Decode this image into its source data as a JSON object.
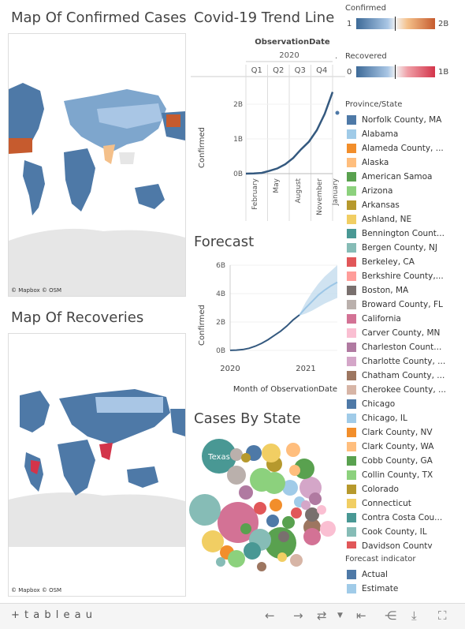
{
  "titles": {
    "map_confirmed": "Map Of Confirmed Cases",
    "trend": "Covid-19 Trend Line",
    "map_recoveries": "Map Of Recoveries",
    "forecast": "Forecast",
    "cases_by_state": "Cases By State"
  },
  "map_attribution": "© Mapbox  © OSM",
  "colors": {
    "line": "#34597f",
    "forecast_band": "#c4dcee",
    "forecast_estimate": "#9cc6e6",
    "map_blue_dark": "#4e79a7",
    "map_blue_light": "#a9c6e5",
    "map_orange": "#c65b2e",
    "map_red": "#d3344a",
    "land_gray": "#e6e6e6"
  },
  "trend": {
    "header": "ObservationDate",
    "year": "2020",
    "quarters": [
      "Q1",
      "Q2",
      "Q3",
      "Q4"
    ],
    "more_marker": ".",
    "ylabel": "Confirmed",
    "yticks": [
      "2B",
      "1B",
      "0B"
    ],
    "xticks": [
      "February",
      "May",
      "August",
      "November",
      "January"
    ]
  },
  "forecast_axis": {
    "ylabel": "Confirmed",
    "yticks": [
      "6B",
      "4B",
      "2B",
      "0B"
    ],
    "xticks": [
      "2020",
      "2021"
    ],
    "xlabel": "Month of ObservationDate"
  },
  "chart_data": [
    {
      "type": "line",
      "title": "Covid-19 Trend Line",
      "ylabel": "Confirmed",
      "ylim": [
        0,
        2.5
      ],
      "y_unit": "B",
      "x": [
        "2020-01",
        "2020-02",
        "2020-03",
        "2020-04",
        "2020-05",
        "2020-06",
        "2020-07",
        "2020-08",
        "2020-09",
        "2020-10",
        "2020-11",
        "2020-12",
        "2021-01"
      ],
      "values": [
        0.001,
        0.005,
        0.02,
        0.08,
        0.15,
        0.27,
        0.45,
        0.7,
        0.92,
        1.25,
        1.72,
        2.35,
        1.75
      ]
    },
    {
      "type": "line",
      "title": "Forecast",
      "ylabel": "Confirmed",
      "xlabel": "Month of ObservationDate",
      "ylim": [
        0,
        6
      ],
      "y_unit": "B",
      "x": [
        "2020-01",
        "2020-02",
        "2020-03",
        "2020-04",
        "2020-05",
        "2020-06",
        "2020-07",
        "2020-08",
        "2020-09",
        "2020-10",
        "2020-11",
        "2020-12",
        "2021-01",
        "2021-02",
        "2021-03",
        "2021-04",
        "2021-05",
        "2021-06"
      ],
      "series": [
        {
          "name": "Actual",
          "values": [
            0.01,
            0.02,
            0.06,
            0.15,
            0.3,
            0.5,
            0.75,
            1.05,
            1.35,
            1.72,
            2.15,
            2.5,
            null,
            null,
            null,
            null,
            null,
            null
          ]
        },
        {
          "name": "Estimate",
          "values": [
            null,
            null,
            null,
            null,
            null,
            null,
            null,
            null,
            null,
            null,
            null,
            2.5,
            3.0,
            3.45,
            3.9,
            4.25,
            4.55,
            4.8
          ]
        }
      ],
      "band_upper": [
        null,
        null,
        null,
        null,
        null,
        null,
        null,
        null,
        null,
        null,
        null,
        2.55,
        3.4,
        4.1,
        4.7,
        5.2,
        5.6,
        6.0
      ],
      "band_lower": [
        null,
        null,
        null,
        null,
        null,
        null,
        null,
        null,
        null,
        null,
        null,
        2.45,
        2.6,
        2.8,
        3.05,
        3.3,
        3.5,
        3.7
      ]
    }
  ],
  "legends": {
    "confirmed": {
      "title": "Confirmed",
      "min": "1",
      "max": "2B"
    },
    "recovered": {
      "title": "Recovered",
      "min": "0",
      "max": "1B"
    },
    "province_title": "Province/State",
    "provinces": [
      {
        "label": "Norfolk County, MA",
        "color": "#4e79a7"
      },
      {
        "label": "Alabama",
        "color": "#a0cbe8"
      },
      {
        "label": "Alameda County, ...",
        "color": "#f28e2b"
      },
      {
        "label": "Alaska",
        "color": "#ffbe7d"
      },
      {
        "label": "American Samoa",
        "color": "#59a14f"
      },
      {
        "label": "Arizona",
        "color": "#8cd17d"
      },
      {
        "label": "Arkansas",
        "color": "#b6992d"
      },
      {
        "label": "Ashland, NE",
        "color": "#f1ce63"
      },
      {
        "label": "Bennington Count...",
        "color": "#499894"
      },
      {
        "label": "Bergen County, NJ",
        "color": "#86bcb6"
      },
      {
        "label": "Berkeley, CA",
        "color": "#e15759"
      },
      {
        "label": "Berkshire County,...",
        "color": "#ff9d9a"
      },
      {
        "label": "Boston, MA",
        "color": "#79706e"
      },
      {
        "label": "Broward County, FL",
        "color": "#bab0ac"
      },
      {
        "label": "California",
        "color": "#d37295"
      },
      {
        "label": "Carver County, MN",
        "color": "#fabfd2"
      },
      {
        "label": "Charleston Count...",
        "color": "#b07aa1"
      },
      {
        "label": "Charlotte County, ...",
        "color": "#d4a6c8"
      },
      {
        "label": "Chatham County, ...",
        "color": "#9d7660"
      },
      {
        "label": "Cherokee County, ...",
        "color": "#d7b5a6"
      },
      {
        "label": "Chicago",
        "color": "#4e79a7"
      },
      {
        "label": "Chicago, IL",
        "color": "#a0cbe8"
      },
      {
        "label": "Clark County, NV",
        "color": "#f28e2b"
      },
      {
        "label": "Clark County, WA",
        "color": "#ffbe7d"
      },
      {
        "label": "Cobb County, GA",
        "color": "#59a14f"
      },
      {
        "label": "Collin County, TX",
        "color": "#8cd17d"
      },
      {
        "label": "Colorado",
        "color": "#b6992d"
      },
      {
        "label": "Connecticut",
        "color": "#f1ce63"
      },
      {
        "label": "Contra Costa Cou...",
        "color": "#499894"
      },
      {
        "label": "Cook County, IL",
        "color": "#86bcb6"
      },
      {
        "label": "Davidson County",
        "color": "#e15759"
      }
    ],
    "forecast_title": "Forecast indicator",
    "forecast_items": [
      {
        "label": "Actual",
        "color": "#4e79a7"
      },
      {
        "label": "Estimate",
        "color": "#a0cbe8"
      }
    ]
  },
  "bubbles": {
    "highlight_label": "Texas",
    "items": [
      {
        "color": "#499894"
      },
      {
        "color": "#d37295"
      },
      {
        "color": "#86bcb6"
      },
      {
        "color": "#59a14f"
      },
      {
        "color": "#f1ce63"
      },
      {
        "color": "#8cd17d"
      },
      {
        "color": "#bab0ac"
      },
      {
        "color": "#4e79a7"
      },
      {
        "color": "#b07aa1"
      },
      {
        "color": "#d4a6c8"
      },
      {
        "color": "#9d7660"
      },
      {
        "color": "#f28e2b"
      },
      {
        "color": "#a0cbe8"
      },
      {
        "color": "#e15759"
      },
      {
        "color": "#79706e"
      },
      {
        "color": "#ffbe7d"
      },
      {
        "color": "#86bcb6"
      },
      {
        "color": "#fabfd2"
      },
      {
        "color": "#59a14f"
      },
      {
        "color": "#b6992d"
      },
      {
        "color": "#8cd17d"
      },
      {
        "color": "#f1ce63"
      },
      {
        "color": "#d37295"
      },
      {
        "color": "#bab0ac"
      },
      {
        "color": "#4e79a7"
      },
      {
        "color": "#59a14f"
      },
      {
        "color": "#d7b5a6"
      },
      {
        "color": "#499894"
      },
      {
        "color": "#f28e2b"
      },
      {
        "color": "#b07aa1"
      },
      {
        "color": "#a0cbe8"
      },
      {
        "color": "#e15759"
      },
      {
        "color": "#8cd17d"
      },
      {
        "color": "#b6992d"
      },
      {
        "color": "#d4a6c8"
      },
      {
        "color": "#ffbe7d"
      },
      {
        "color": "#79706e"
      },
      {
        "color": "#fabfd2"
      },
      {
        "color": "#59a14f"
      },
      {
        "color": "#f1ce63"
      },
      {
        "color": "#86bcb6"
      },
      {
        "color": "#9d7660"
      }
    ]
  },
  "footer": {
    "brand": "+ t a b l e a u",
    "icons": [
      "undo-icon",
      "redo-icon",
      "revert-icon",
      "dropdown-icon",
      "reset-icon",
      "share-icon",
      "download-icon",
      "fullscreen-icon"
    ]
  }
}
